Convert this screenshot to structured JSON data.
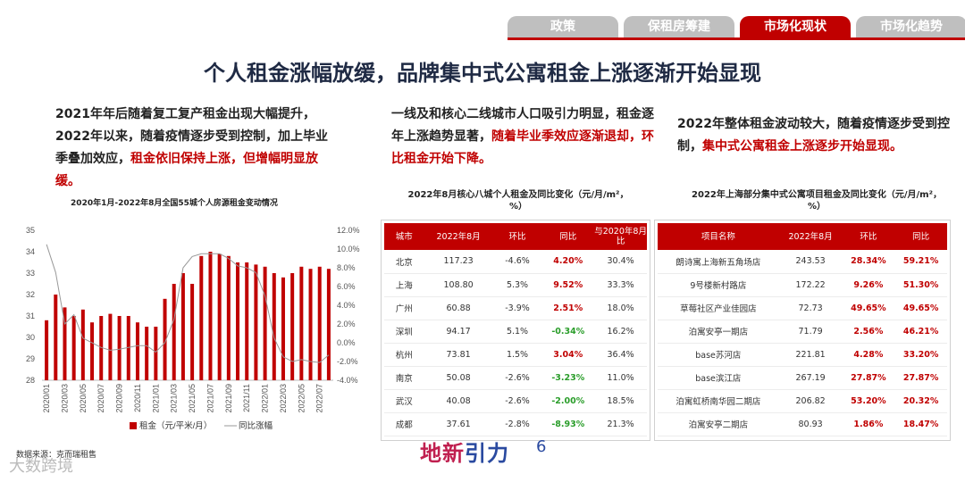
{
  "tabs": [
    "政策",
    "保租房筹建",
    "市场化现状",
    "市场化趋势"
  ],
  "title": "个人租金涨幅放缓，品牌集中式公寓租金上涨逐渐开始显现",
  "col1": {
    "text": "2021年年后随着复工复产租金出现大幅提升，2022年以来，随着疫情逐步受到控制，加上毕业季叠加效应，",
    "red": "租金依旧保持上涨，但增幅明显放缓。"
  },
  "col2": {
    "text": "一线及和核心二线城市人口吸引力明显，租金逐年上涨趋势显著，",
    "red": "随着毕业季效应逐渐退却，环比租金开始下降。"
  },
  "col3": {
    "text": "2022年整体租金波动较大，随着疫情逐步受到控制，",
    "red": "集中式公寓租金上涨逐步开始显现。"
  },
  "chart_data": {
    "type": "bar",
    "title": "2020年1月-2022年8月全国55城个人房源租金变动情况",
    "x": [
      "2020/01",
      "2020/02",
      "2020/03",
      "2020/04",
      "2020/05",
      "2020/06",
      "2020/07",
      "2020/08",
      "2020/09",
      "2020/10",
      "2020/11",
      "2020/12",
      "2021/01",
      "2021/02",
      "2021/03",
      "2021/04",
      "2021/05",
      "2021/06",
      "2021/07",
      "2021/08",
      "2021/09",
      "2021/10",
      "2021/11",
      "2021/12",
      "2022/01",
      "2022/02",
      "2022/03",
      "2022/04",
      "2022/05",
      "2022/06",
      "2022/07",
      "2022/08"
    ],
    "xtick_labels": [
      "2020/01",
      "2020/03",
      "2020/05",
      "2020/07",
      "2020/09",
      "2020/11",
      "2021/01",
      "2021/03",
      "2021/05",
      "2021/07",
      "2021/09",
      "2021/11",
      "2022/01",
      "2022/03",
      "2022/05",
      "2022/07"
    ],
    "series": [
      {
        "name": "租金（元/平米/月）",
        "axis": "left",
        "type": "bar",
        "color": "#c00000",
        "values": [
          30.8,
          32.0,
          31.4,
          31.0,
          31.3,
          30.7,
          31.0,
          31.1,
          31.0,
          31.0,
          30.7,
          30.5,
          30.5,
          31.8,
          32.5,
          33.0,
          32.5,
          33.8,
          34.0,
          33.9,
          33.8,
          33.5,
          33.5,
          33.4,
          33.3,
          33.0,
          32.8,
          33.0,
          33.3,
          33.2,
          33.3,
          33.2
        ]
      },
      {
        "name": "同比涨幅",
        "axis": "right",
        "type": "line",
        "color": "#999999",
        "values": [
          10.5,
          7.5,
          2.0,
          3.0,
          0.5,
          0.0,
          -0.5,
          -0.8,
          -0.7,
          -0.5,
          -0.3,
          -0.3,
          -1.0,
          0.0,
          2.5,
          8.0,
          9.2,
          9.5,
          9.5,
          9.5,
          9.0,
          8.2,
          8.0,
          7.5,
          5.0,
          0.5,
          -1.5,
          -2.0,
          -1.8,
          -2.0,
          -2.1,
          -1.3
        ]
      }
    ],
    "ylim_left": [
      28,
      35
    ],
    "yticks_left": [
      28,
      29,
      30,
      31,
      32,
      33,
      34,
      35
    ],
    "ylim_right": [
      -4.0,
      12.0
    ],
    "yticks_right": [
      "-4.0%",
      "-2.0%",
      "0.0%",
      "2.0%",
      "4.0%",
      "6.0%",
      "8.0%",
      "10.0%",
      "12.0%"
    ],
    "grid": false,
    "legend": "bottom"
  },
  "table1": {
    "title": "2022年8月核心八城个人租金及同比变化（元/月/m²，%）",
    "headers": [
      "城市",
      "2022年8月",
      "环比",
      "同比",
      "与2020年8月比"
    ],
    "rows": [
      [
        "北京",
        "117.23",
        "-4.6%",
        "4.20%",
        "30.4%"
      ],
      [
        "上海",
        "108.80",
        "5.3%",
        "9.52%",
        "33.3%"
      ],
      [
        "广州",
        "60.88",
        "-3.9%",
        "2.51%",
        "18.0%"
      ],
      [
        "深圳",
        "94.17",
        "5.1%",
        "-0.34%",
        "16.2%"
      ],
      [
        "杭州",
        "73.81",
        "1.5%",
        "3.04%",
        "36.4%"
      ],
      [
        "南京",
        "50.08",
        "-2.6%",
        "-3.23%",
        "11.0%"
      ],
      [
        "武汉",
        "40.08",
        "-2.6%",
        "-2.00%",
        "18.5%"
      ],
      [
        "成都",
        "37.61",
        "-2.8%",
        "-8.93%",
        "21.3%"
      ]
    ]
  },
  "table2": {
    "title": "2022年上海部分集中式公寓项目租金及同比变化（元/月/m²，%）",
    "headers": [
      "项目名称",
      "2022年8月",
      "环比",
      "同比"
    ],
    "rows": [
      [
        "朗诗寓上海新五角场店",
        "243.53",
        "28.34%",
        "59.21%"
      ],
      [
        "9号楼新村路店",
        "172.22",
        "9.26%",
        "51.30%"
      ],
      [
        "草莓社区产业佳园店",
        "72.73",
        "49.65%",
        "49.65%"
      ],
      [
        "泊寓安亭一期店",
        "71.79",
        "2.56%",
        "46.21%"
      ],
      [
        "base苏河店",
        "221.81",
        "4.28%",
        "33.20%"
      ],
      [
        "base滨江店",
        "267.19",
        "27.87%",
        "27.87%"
      ],
      [
        "泊寓虹桥南华园二期店",
        "206.82",
        "53.20%",
        "20.32%"
      ],
      [
        "泊寓安亭二期店",
        "80.93",
        "1.86%",
        "18.47%"
      ]
    ]
  },
  "source": "数据来源：克而瑞租售",
  "logo": {
    "part1": "地新",
    "part2": "引力"
  },
  "page_number": "6",
  "watermark": "大数跨境"
}
